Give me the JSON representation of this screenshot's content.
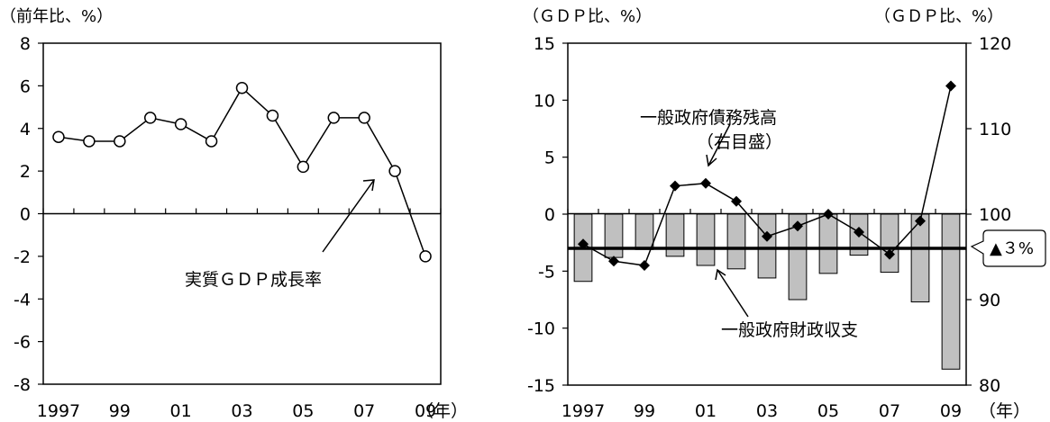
{
  "chart_data": [
    {
      "type": "line",
      "unit_label": "（前年比、%）",
      "x_suffix": "（年）",
      "ylim": [
        -8,
        8
      ],
      "yticks": [
        "8",
        "6",
        "4",
        "2",
        "0",
        "-2",
        "-4",
        "-6",
        "-8"
      ],
      "categories": [
        "1997",
        "1998",
        "1999",
        "2000",
        "2001",
        "2002",
        "2003",
        "2004",
        "2005",
        "2006",
        "2007",
        "2008",
        "2009"
      ],
      "xtick_labels": [
        "1997",
        "99",
        "01",
        "03",
        "05",
        "07",
        "09"
      ],
      "series": [
        {
          "name": "実質ＧＤＰ成長率",
          "values": [
            3.6,
            3.4,
            3.4,
            4.5,
            4.2,
            3.4,
            5.9,
            4.6,
            2.2,
            4.5,
            4.5,
            2.0,
            -2.0
          ]
        }
      ],
      "annotation": "実質ＧＤＰ成長率"
    },
    {
      "type": "bar+line",
      "unit_label_left": "（ＧＤＰ比、%）",
      "unit_label_right": "（ＧＤＰ比、%）",
      "x_suffix": "（年）",
      "ylim_left": [
        -15,
        15
      ],
      "ylim_right": [
        80,
        120
      ],
      "yticks_left": [
        "15",
        "10",
        "5",
        "0",
        "-5",
        "-10",
        "-15"
      ],
      "yticks_right": [
        "120",
        "110",
        "100",
        "90",
        "80"
      ],
      "categories": [
        "1997",
        "1998",
        "1999",
        "2000",
        "2001",
        "2002",
        "2003",
        "2004",
        "2005",
        "2006",
        "2007",
        "2008",
        "2009"
      ],
      "xtick_labels": [
        "1997",
        "99",
        "01",
        "03",
        "05",
        "07",
        "09"
      ],
      "series": [
        {
          "name": "一般政府財政収支",
          "axis": "left",
          "type": "bar",
          "values": [
            -5.9,
            -3.8,
            -3.1,
            -3.7,
            -4.5,
            -4.8,
            -5.6,
            -7.5,
            -5.2,
            -3.6,
            -5.1,
            -7.7,
            -13.6
          ]
        },
        {
          "name": "一般政府債務残高",
          "axis": "right",
          "type": "line",
          "values": [
            96.5,
            94.5,
            94.0,
            103.3,
            103.6,
            101.5,
            97.4,
            98.6,
            100.0,
            97.9,
            95.3,
            99.2,
            115.0
          ]
        }
      ],
      "reference_line": {
        "value": -3,
        "label": "▲３%"
      },
      "annotations": {
        "debt": "一般政府債務残高",
        "debt_note": "（右目盛）",
        "balance": "一般政府財政収支"
      }
    }
  ]
}
